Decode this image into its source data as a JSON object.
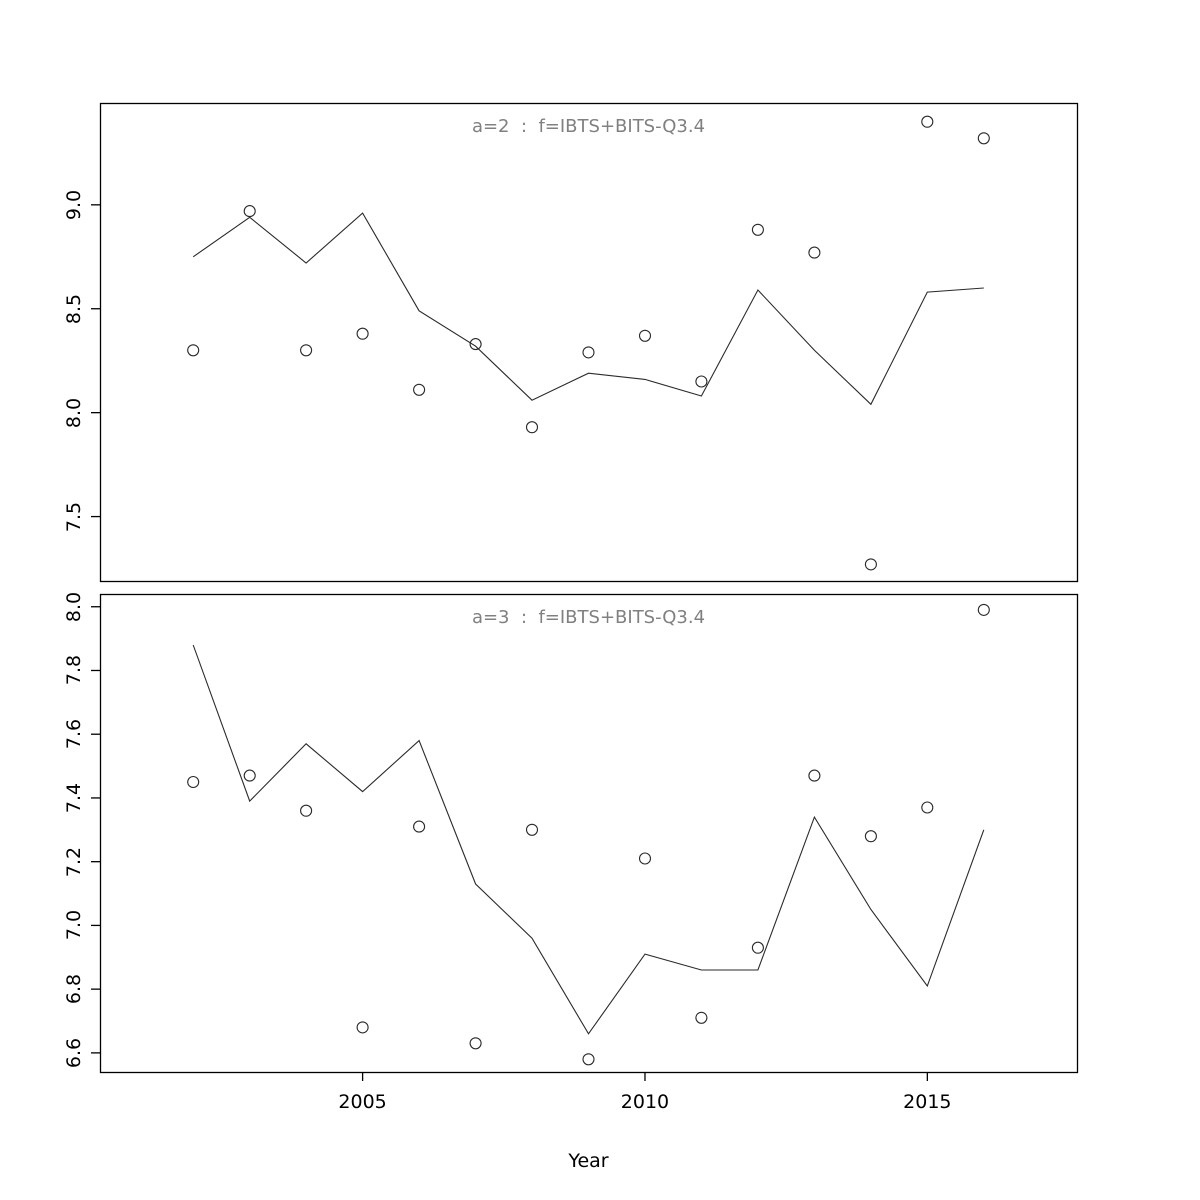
{
  "figure": {
    "xlabel": "Year",
    "background_color": "#ffffff",
    "line_color": "#2a2a2a",
    "point_color": "#2a2a2a",
    "box_color": "#000000",
    "title_color": "#808080",
    "xticks": [
      2005,
      2010,
      2015
    ],
    "xtick_labels": [
      "2005",
      "2010",
      "2015"
    ]
  },
  "chart_data": [
    {
      "type": "line",
      "subtype": "points-plus-fitted-line",
      "title": "a=2  :  f=IBTS+BITS-Q3.4",
      "xlabel": "Year",
      "ylabel": "",
      "grid": false,
      "legend": "none",
      "x": [
        2002,
        2003,
        2004,
        2005,
        2006,
        2007,
        2008,
        2009,
        2010,
        2011,
        2012,
        2013,
        2014,
        2015,
        2016
      ],
      "series": [
        {
          "name": "observed",
          "marker": "open-circle",
          "draw": "points",
          "values": [
            8.3,
            8.97,
            8.3,
            8.38,
            8.11,
            8.33,
            7.93,
            8.29,
            8.37,
            8.15,
            8.88,
            8.77,
            7.27,
            9.4,
            9.32
          ]
        },
        {
          "name": "fitted",
          "marker": "none",
          "draw": "line",
          "values": [
            8.75,
            8.94,
            8.72,
            8.96,
            8.49,
            8.32,
            8.06,
            8.19,
            8.16,
            8.08,
            8.59,
            8.3,
            8.04,
            8.58,
            8.6
          ]
        }
      ],
      "xlim": [
        2000.35,
        2017.65
      ],
      "ylim": [
        7.19,
        9.49
      ],
      "yticks": [
        7.5,
        8.0,
        8.5,
        9.0
      ],
      "ytick_labels": [
        "7.5",
        "8.0",
        "8.5",
        "9.0"
      ]
    },
    {
      "type": "line",
      "subtype": "points-plus-fitted-line",
      "title": "a=3  :  f=IBTS+BITS-Q3.4",
      "xlabel": "Year",
      "ylabel": "",
      "grid": false,
      "legend": "none",
      "x": [
        2002,
        2003,
        2004,
        2005,
        2006,
        2007,
        2008,
        2009,
        2010,
        2011,
        2012,
        2013,
        2014,
        2015,
        2016
      ],
      "series": [
        {
          "name": "observed",
          "marker": "open-circle",
          "draw": "points",
          "values": [
            7.45,
            7.47,
            7.36,
            6.68,
            7.31,
            6.63,
            7.3,
            6.58,
            7.21,
            6.71,
            6.93,
            7.47,
            7.28,
            7.37,
            7.99
          ]
        },
        {
          "name": "fitted",
          "marker": "none",
          "draw": "line",
          "values": [
            7.88,
            7.39,
            7.57,
            7.42,
            7.58,
            7.13,
            6.96,
            6.66,
            6.91,
            6.86,
            6.86,
            7.34,
            7.05,
            6.81,
            7.3
          ]
        }
      ],
      "xlim": [
        2000.35,
        2017.65
      ],
      "ylim": [
        6.54,
        8.04
      ],
      "yticks": [
        6.6,
        6.8,
        7.0,
        7.2,
        7.4,
        7.6,
        7.8,
        8.0
      ],
      "ytick_labels": [
        "6.6",
        "6.8",
        "7.0",
        "7.2",
        "7.4",
        "7.6",
        "7.8",
        "8.0"
      ]
    }
  ]
}
